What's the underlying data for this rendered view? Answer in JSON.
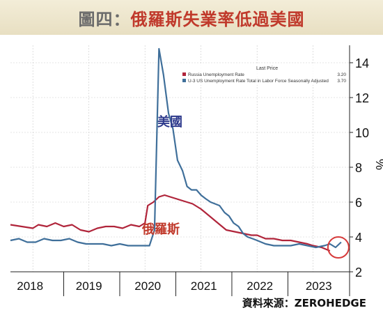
{
  "header": {
    "title_prefix": "圖四：",
    "title_main": "俄羅斯失業率低過美國"
  },
  "source": "資料來源：ZEROHEDGE",
  "chart_data": {
    "type": "line",
    "title": "圖四：俄羅斯失業率低過美國",
    "ylabel": "%",
    "ylim": [
      2,
      15
    ],
    "y_ticks": [
      2,
      4,
      6,
      8,
      10,
      12,
      14
    ],
    "x_range": [
      2017.6,
      2023.65
    ],
    "x_tick_labels": [
      "2018",
      "2019",
      "2020",
      "2021",
      "2022",
      "2023"
    ],
    "legend": {
      "header": "Last Price",
      "placement": "top",
      "entries": [
        {
          "label": "Russia Unemployment Rate",
          "value": "3.20",
          "color": "#b0243a"
        },
        {
          "label": "U-3 US Unemployment Rate Total in Labor Force Seasonally Adjusted",
          "value": "3.70",
          "color": "#3f6f9a"
        }
      ]
    },
    "annotations": [
      {
        "text": "美國",
        "color": "#2e3a8c",
        "series": "us"
      },
      {
        "text": "俄羅斯",
        "color": "#c0392b",
        "series": "russia"
      }
    ],
    "highlight": {
      "x": 2023.45,
      "y": 3.4,
      "color": "#d63a3a"
    },
    "series": [
      {
        "id": "russia",
        "name": "Russia Unemployment Rate",
        "color": "#b0243a",
        "x": [
          2017.6,
          2017.8,
          2018.0,
          2018.1,
          2018.25,
          2018.4,
          2018.55,
          2018.7,
          2018.85,
          2019.0,
          2019.15,
          2019.3,
          2019.45,
          2019.6,
          2019.75,
          2019.9,
          2020.0,
          2020.05,
          2020.15,
          2020.25,
          2020.35,
          2020.45,
          2020.55,
          2020.65,
          2020.75,
          2020.85,
          2021.0,
          2021.15,
          2021.3,
          2021.45,
          2021.6,
          2021.75,
          2021.9,
          2022.0,
          2022.15,
          2022.3,
          2022.45,
          2022.6,
          2022.75,
          2022.9,
          2023.0,
          2023.15,
          2023.3
        ],
        "values": [
          4.7,
          4.6,
          4.5,
          4.7,
          4.6,
          4.8,
          4.6,
          4.7,
          4.4,
          4.3,
          4.5,
          4.6,
          4.6,
          4.5,
          4.7,
          4.6,
          4.8,
          5.8,
          6.0,
          6.3,
          6.4,
          6.3,
          6.2,
          6.1,
          6.0,
          5.9,
          5.6,
          5.2,
          4.8,
          4.4,
          4.3,
          4.2,
          4.1,
          4.1,
          3.9,
          3.9,
          3.8,
          3.8,
          3.7,
          3.6,
          3.5,
          3.4,
          3.2
        ]
      },
      {
        "id": "us",
        "name": "U-3 US Unemployment Rate Total in Labor Force Seasonally Adjusted",
        "color": "#3f6f9a",
        "x": [
          2017.6,
          2017.75,
          2017.9,
          2018.05,
          2018.2,
          2018.35,
          2018.5,
          2018.65,
          2018.8,
          2018.95,
          2019.1,
          2019.25,
          2019.4,
          2019.55,
          2019.7,
          2019.85,
          2020.0,
          2020.08,
          2020.17,
          2020.25,
          2020.33,
          2020.42,
          2020.5,
          2020.58,
          2020.67,
          2020.75,
          2020.83,
          2020.92,
          2021.0,
          2021.08,
          2021.17,
          2021.25,
          2021.33,
          2021.42,
          2021.5,
          2021.58,
          2021.67,
          2021.75,
          2021.83,
          2021.92,
          2022.0,
          2022.15,
          2022.3,
          2022.45,
          2022.6,
          2022.75,
          2022.9,
          2023.05,
          2023.2,
          2023.3,
          2023.4,
          2023.5
        ],
        "values": [
          3.8,
          3.9,
          3.7,
          3.7,
          3.9,
          3.8,
          3.8,
          3.9,
          3.7,
          3.6,
          3.6,
          3.6,
          3.5,
          3.6,
          3.5,
          3.5,
          3.5,
          3.5,
          4.4,
          14.8,
          13.3,
          11.1,
          10.2,
          8.4,
          7.8,
          6.9,
          6.7,
          6.7,
          6.4,
          6.2,
          6.0,
          5.9,
          5.8,
          5.4,
          5.2,
          4.8,
          4.6,
          4.2,
          4.0,
          3.9,
          3.8,
          3.6,
          3.5,
          3.5,
          3.5,
          3.6,
          3.5,
          3.4,
          3.5,
          3.6,
          3.4,
          3.7
        ]
      }
    ]
  }
}
